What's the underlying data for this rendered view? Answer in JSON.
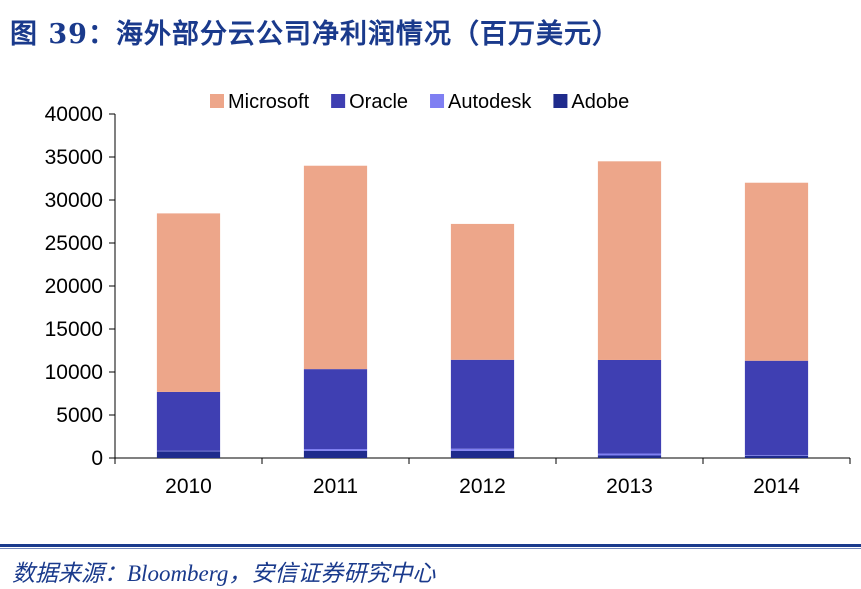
{
  "title": "图 39：海外部分云公司净利润情况（百万美元）",
  "source": "数据来源：Bloomberg，安信证券研究中心",
  "chart_data": {
    "type": "bar",
    "stacked": true,
    "title": "",
    "xlabel": "",
    "ylabel": "",
    "categories": [
      "2010",
      "2011",
      "2012",
      "2013",
      "2014"
    ],
    "series": [
      {
        "name": "Adobe",
        "color": "#1f2b8c",
        "values": [
          775,
          833,
          832,
          290,
          268
        ]
      },
      {
        "name": "Autodesk",
        "color": "#7f7ff2",
        "values": [
          58,
          212,
          247,
          229,
          82
        ]
      },
      {
        "name": "Oracle",
        "color": "#3f3fb2",
        "values": [
          6850,
          9290,
          10340,
          10880,
          10960
        ]
      },
      {
        "name": "Microsoft",
        "color": "#eda68a",
        "values": [
          20760,
          23650,
          15800,
          23100,
          20700
        ]
      }
    ],
    "legend_order": [
      "Microsoft",
      "Oracle",
      "Autodesk",
      "Adobe"
    ],
    "ylim": [
      0,
      40000
    ],
    "yticks": [
      0,
      5000,
      10000,
      15000,
      20000,
      25000,
      30000,
      35000,
      40000
    ],
    "grid": false,
    "legend_position": "top"
  }
}
